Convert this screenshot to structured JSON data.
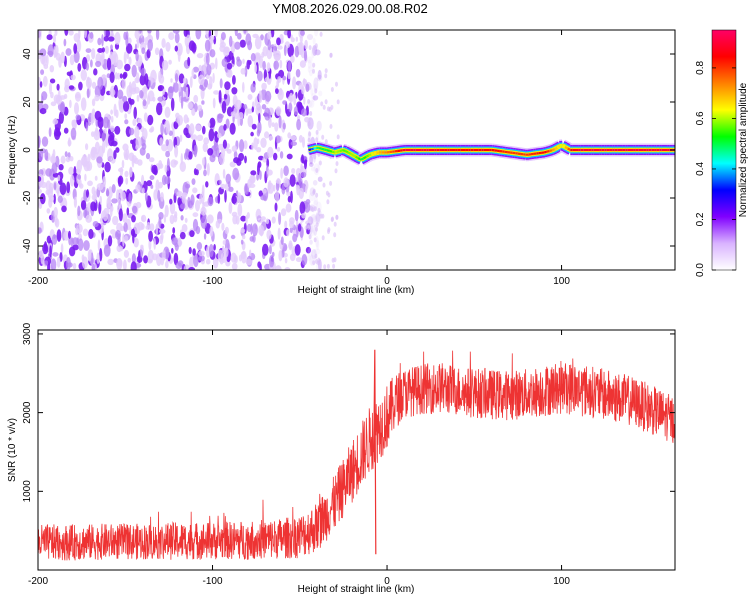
{
  "title": "YM08.2026.029.00.08.R02",
  "colorbar": {
    "label": "Normalized spectral amplitude",
    "ticks": [
      "0.0",
      "0.2",
      "0.4",
      "0.6",
      "0.8"
    ],
    "tick_values": [
      0,
      0.2,
      0.4,
      0.6,
      0.8
    ],
    "range": [
      0,
      0.95
    ],
    "colormap": [
      "#ffffff",
      "#d9b3ff",
      "#8000ff",
      "#0000ff",
      "#00ffff",
      "#00ff00",
      "#ffff00",
      "#ff8000",
      "#ff0000",
      "#ff0066"
    ]
  },
  "chart_data": [
    {
      "type": "heatmap",
      "xlabel": "Height of straight line (km)",
      "ylabel": "Frequency (Hz)",
      "xlim": [
        -200,
        165
      ],
      "ylim": [
        -50,
        50
      ],
      "xticks": [
        -200,
        -100,
        0,
        100
      ],
      "yticks": [
        -40,
        -20,
        0,
        20,
        40
      ],
      "xtick_labels": [
        "-200",
        "-100",
        "0",
        "100"
      ],
      "ytick_labels": [
        "-40",
        "-20",
        "0",
        "20",
        "40"
      ],
      "noise_region_x": [
        -200,
        -45
      ],
      "signal_track": {
        "x": [
          -45,
          -40,
          -35,
          -30,
          -25,
          -20,
          -15,
          -10,
          -5,
          0,
          10,
          20,
          40,
          60,
          70,
          80,
          90,
          95,
          100,
          105,
          110,
          120,
          140,
          165
        ],
        "y": [
          0,
          1,
          0,
          -1,
          0,
          -2,
          -4,
          -2,
          -1,
          -1,
          0,
          0,
          0,
          0,
          -1,
          -2,
          -1,
          0,
          2,
          0,
          0,
          0,
          0,
          0
        ],
        "amplitude": [
          0.3,
          0.5,
          0.5,
          0.6,
          0.55,
          0.6,
          0.5,
          0.6,
          0.7,
          0.75,
          0.9,
          0.9,
          0.85,
          0.85,
          0.8,
          0.8,
          0.85,
          0.7,
          0.6,
          0.85,
          0.9,
          0.9,
          0.9,
          0.9
        ]
      }
    },
    {
      "type": "line",
      "xlabel": "Height of straight line (km)",
      "ylabel": "SNR (10 * v/v)",
      "xlim": [
        -200,
        165
      ],
      "ylim": [
        0,
        3050
      ],
      "xticks": [
        -200,
        -100,
        0,
        100
      ],
      "yticks": [
        1000,
        2000,
        3000
      ],
      "xtick_labels": [
        "-200",
        "-100",
        "0",
        "100"
      ],
      "ytick_labels": [
        "1000",
        "2000",
        "3000"
      ],
      "color": "#ee3333",
      "series": [
        {
          "x": [
            -200,
            -180,
            -160,
            -140,
            -120,
            -100,
            -80,
            -60,
            -50,
            -40,
            -35,
            -30,
            -25,
            -20,
            -15,
            -10,
            -5,
            0,
            5,
            10,
            20,
            30,
            40,
            50,
            60,
            70,
            80,
            90,
            100,
            110,
            120,
            130,
            140,
            150,
            160,
            165
          ],
          "y": [
            350,
            350,
            360,
            360,
            370,
            370,
            380,
            400,
            430,
            550,
            700,
            850,
            1050,
            1250,
            1450,
            1650,
            1800,
            1950,
            2150,
            2250,
            2300,
            2320,
            2280,
            2250,
            2230,
            2220,
            2240,
            2280,
            2320,
            2300,
            2250,
            2200,
            2150,
            2050,
            1950,
            1900
          ],
          "spread": [
            230,
            230,
            230,
            230,
            240,
            240,
            250,
            260,
            280,
            320,
            340,
            360,
            380,
            400,
            420,
            430,
            430,
            420,
            350,
            320,
            320,
            330,
            320,
            320,
            320,
            320,
            320,
            330,
            340,
            340,
            330,
            330,
            320,
            320,
            310,
            300
          ]
        }
      ],
      "spike": {
        "x": -7,
        "y": 2800
      }
    }
  ]
}
